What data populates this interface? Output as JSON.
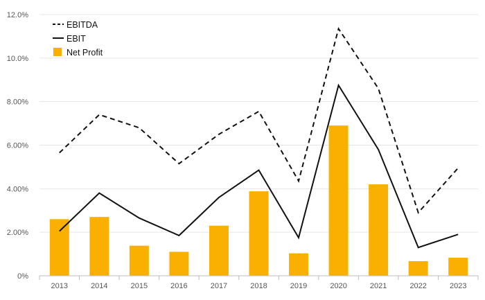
{
  "chart_data": {
    "type": "bar",
    "title": "",
    "xlabel": "",
    "ylabel": "",
    "categories": [
      "2013",
      "2014",
      "2015",
      "2016",
      "2017",
      "2018",
      "2019",
      "2020",
      "2021",
      "2022",
      "2023"
    ],
    "ylim": [
      0,
      12
    ],
    "yticks": [
      0,
      2,
      4,
      6,
      8,
      10,
      12
    ],
    "ytick_labels": [
      "0%",
      "2.00%",
      "4.00%",
      "6.00%",
      "8.00%",
      "10.0%",
      "12.0%"
    ],
    "grid": true,
    "legend_position": "top-left",
    "series": [
      {
        "name": "EBITDA",
        "kind": "line",
        "style": "dashed",
        "color": "#111111",
        "values": [
          5.65,
          7.4,
          6.8,
          5.15,
          6.5,
          7.55,
          4.35,
          11.35,
          8.6,
          2.9,
          4.95
        ]
      },
      {
        "name": "EBIT",
        "kind": "line",
        "style": "solid",
        "color": "#111111",
        "values": [
          2.05,
          3.8,
          2.65,
          1.85,
          3.6,
          4.85,
          1.75,
          8.75,
          5.8,
          1.3,
          1.9
        ]
      },
      {
        "name": "Net Profit",
        "kind": "bar",
        "color": "#F9B000",
        "values": [
          2.6,
          2.7,
          1.38,
          1.1,
          2.3,
          3.88,
          1.03,
          6.9,
          4.2,
          0.67,
          0.83
        ]
      }
    ]
  }
}
